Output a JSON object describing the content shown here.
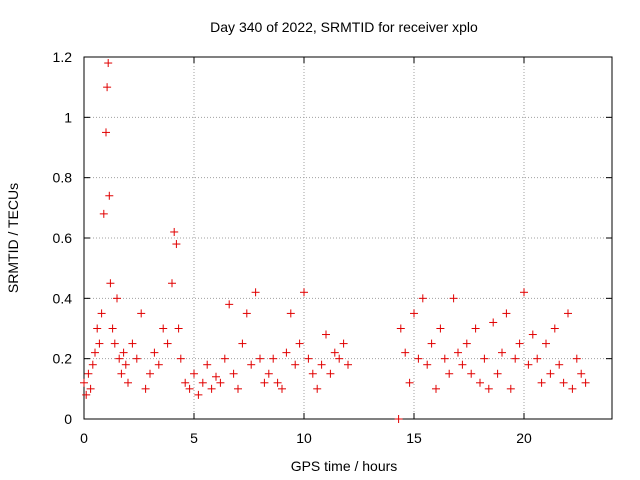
{
  "chart_data": {
    "type": "scatter",
    "title": "Day 340 of 2022, SRMTID for receiver xplo",
    "xlabel": "GPS time / hours",
    "ylabel": "SRMTID / TECUs",
    "xlim": [
      0,
      24
    ],
    "ylim": [
      0,
      1.2
    ],
    "xticks": [
      0,
      5,
      10,
      15,
      20
    ],
    "yticks": [
      0,
      0.2,
      0.4,
      0.6,
      0.8,
      1,
      1.2
    ],
    "xtick_labels": [
      "0",
      "5",
      "10",
      "15",
      "20"
    ],
    "ytick_labels": [
      "0",
      "0.2",
      "0.4",
      "0.6",
      "0.8",
      "1",
      "1.2"
    ],
    "marker": "plus",
    "color": "#e00000",
    "grid": true,
    "series": [
      {
        "name": "SRMTID",
        "x": [
          0.0,
          0.1,
          0.2,
          0.3,
          0.4,
          0.5,
          0.6,
          0.7,
          0.8,
          0.9,
          1.0,
          1.05,
          1.1,
          1.15,
          1.2,
          1.3,
          1.4,
          1.5,
          1.6,
          1.7,
          1.8,
          1.9,
          2.0,
          2.2,
          2.4,
          2.6,
          2.8,
          3.0,
          3.2,
          3.4,
          3.6,
          3.8,
          4.0,
          4.1,
          4.2,
          4.3,
          4.4,
          4.6,
          4.8,
          5.0,
          5.2,
          5.4,
          5.6,
          5.8,
          6.0,
          6.2,
          6.4,
          6.6,
          6.8,
          7.0,
          7.2,
          7.4,
          7.6,
          7.8,
          8.0,
          8.2,
          8.4,
          8.6,
          8.8,
          9.0,
          9.2,
          9.4,
          9.6,
          9.8,
          10.0,
          10.2,
          10.4,
          10.6,
          10.8,
          11.0,
          11.2,
          11.4,
          11.6,
          11.8,
          12.0,
          14.3,
          14.4,
          14.6,
          14.8,
          15.0,
          15.2,
          15.4,
          15.6,
          15.8,
          16.0,
          16.2,
          16.4,
          16.6,
          16.8,
          17.0,
          17.2,
          17.4,
          17.6,
          17.8,
          18.0,
          18.2,
          18.4,
          18.6,
          18.8,
          19.0,
          19.2,
          19.4,
          19.6,
          19.8,
          20.0,
          20.2,
          20.4,
          20.6,
          20.8,
          21.0,
          21.2,
          21.4,
          21.6,
          21.8,
          22.0,
          22.2,
          22.4,
          22.6,
          22.8
        ],
        "y": [
          0.12,
          0.08,
          0.15,
          0.1,
          0.18,
          0.22,
          0.3,
          0.25,
          0.35,
          0.68,
          0.95,
          1.1,
          1.18,
          0.74,
          0.45,
          0.3,
          0.25,
          0.4,
          0.2,
          0.15,
          0.22,
          0.18,
          0.12,
          0.25,
          0.2,
          0.35,
          0.1,
          0.15,
          0.22,
          0.18,
          0.3,
          0.25,
          0.45,
          0.62,
          0.58,
          0.3,
          0.2,
          0.12,
          0.1,
          0.15,
          0.08,
          0.12,
          0.18,
          0.1,
          0.14,
          0.12,
          0.2,
          0.38,
          0.15,
          0.1,
          0.25,
          0.35,
          0.18,
          0.42,
          0.2,
          0.12,
          0.15,
          0.2,
          0.12,
          0.1,
          0.22,
          0.35,
          0.18,
          0.25,
          0.42,
          0.2,
          0.15,
          0.1,
          0.18,
          0.28,
          0.15,
          0.22,
          0.2,
          0.25,
          0.18,
          0.0,
          0.3,
          0.22,
          0.12,
          0.35,
          0.2,
          0.4,
          0.18,
          0.25,
          0.1,
          0.3,
          0.2,
          0.15,
          0.4,
          0.22,
          0.18,
          0.25,
          0.15,
          0.3,
          0.12,
          0.2,
          0.1,
          0.32,
          0.15,
          0.22,
          0.35,
          0.1,
          0.2,
          0.25,
          0.42,
          0.18,
          0.28,
          0.2,
          0.12,
          0.25,
          0.15,
          0.3,
          0.18,
          0.12,
          0.35,
          0.1,
          0.2,
          0.15,
          0.12
        ]
      }
    ]
  }
}
